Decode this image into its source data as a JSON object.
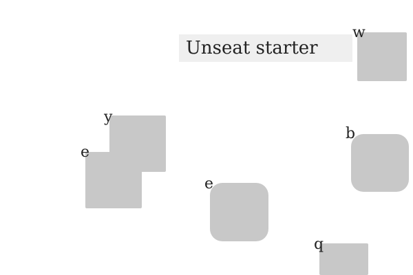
{
  "title": {
    "text": "Unseat starter"
  },
  "items": [
    {
      "id": "w",
      "label": "w",
      "shape": "square"
    },
    {
      "id": "y",
      "label": "y",
      "shape": "square"
    },
    {
      "id": "e1",
      "label": "e",
      "shape": "square"
    },
    {
      "id": "b",
      "label": "b",
      "shape": "rounded"
    },
    {
      "id": "e2",
      "label": "e",
      "shape": "rounded"
    },
    {
      "id": "q",
      "label": "q",
      "shape": "square"
    }
  ],
  "colors": {
    "background": "#ffffff",
    "title_bar": "#efefef",
    "shape_fill": "#c8c8c8",
    "text": "#222222"
  }
}
